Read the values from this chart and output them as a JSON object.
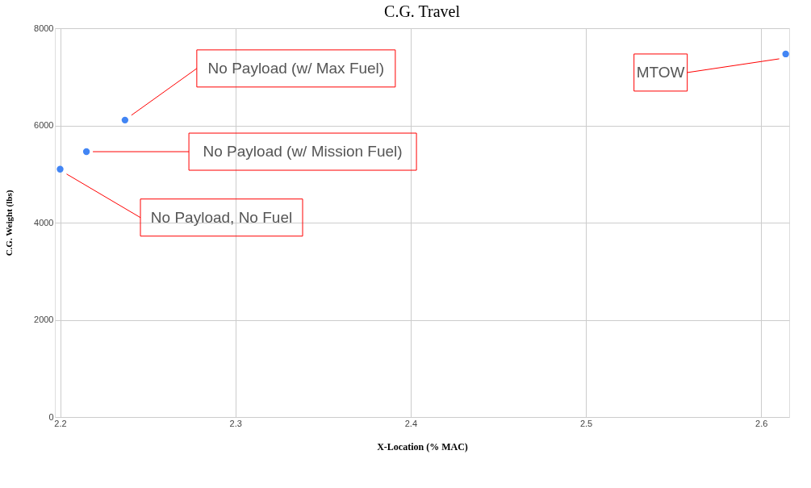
{
  "chart_data": {
    "type": "scatter",
    "title": "C.G. Travel",
    "xlabel": "X-Location (% MAC)",
    "ylabel": "C.G. Weight (lbs)",
    "x": [
      2.2,
      2.215,
      2.237,
      2.614
    ],
    "series": [
      {
        "color": "#4285f4",
        "values": [
          5100,
          5460,
          6110,
          7470
        ]
      }
    ],
    "xlim": [
      2.197,
      2.616
    ],
    "ylim": [
      0,
      8000
    ],
    "xticks": [
      2.2,
      2.3,
      2.4,
      2.5,
      2.6
    ],
    "yticks": [
      0,
      2000,
      4000,
      6000,
      8000
    ],
    "grid": true,
    "marker": "circle",
    "annotations": [
      {
        "text": "No Payload, No Fuel",
        "x": 2.2,
        "y": 5100
      },
      {
        "text": "No Payload (w/ Mission Fuel)",
        "x": 2.215,
        "y": 5460
      },
      "No Payload (w/ Max Fuel)",
      "MTOW"
    ]
  }
}
